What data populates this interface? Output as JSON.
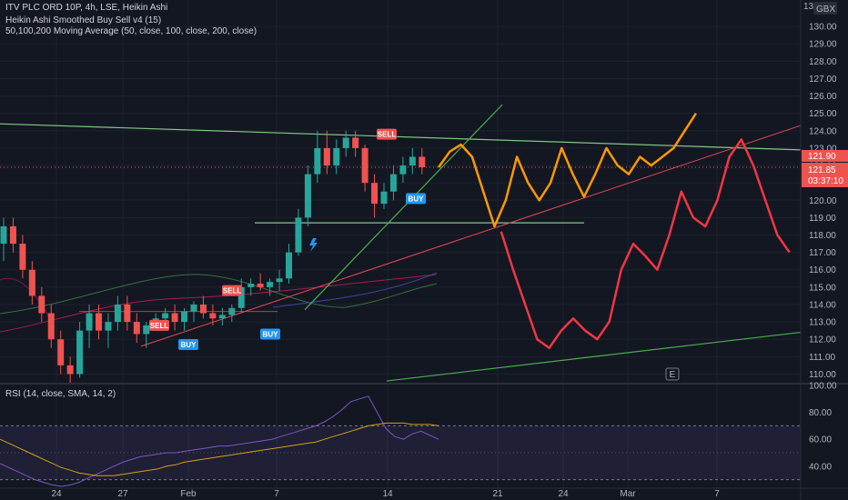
{
  "header": {
    "symbol_line": "ITV PLC ORD 10P, 4h, LSE, Heikin Ashi",
    "indicator1": "Heikin Ashi Smoothed Buy Sell v4  (15)",
    "indicator2": "50,100,200 Moving Average (50, close, 100, close, 200, close)",
    "currency": "GBX"
  },
  "rsi_legend": "RSI (14, close, SMA, 14, 2)",
  "price_tags": {
    "last": "121.90",
    "current": "121.85",
    "countdown": "03:37:10"
  },
  "extra_tick": "13",
  "e_badge": "E",
  "signals": [
    {
      "label": "SELL",
      "kind": "sell"
    },
    {
      "label": "SELL",
      "kind": "sell"
    },
    {
      "label": "SELL",
      "kind": "sell"
    },
    {
      "label": "BUY",
      "kind": "buy"
    },
    {
      "label": "BUY",
      "kind": "buy"
    },
    {
      "label": "BUY",
      "kind": "buy"
    }
  ],
  "colors": {
    "background": "#131722",
    "up_candle": "#26a69a",
    "down_candle": "#ef5350",
    "orange_projection": "#ff9800",
    "red_projection": "#f23645",
    "trend_green": "#4caf50",
    "resistance_green": "#81c784",
    "rsi_line": "#7e57c2",
    "rsi_ma": "#d4a017"
  },
  "chart_data": {
    "type": "candlestick",
    "price_axis": {
      "ylim": [
        109.5,
        131
      ],
      "ticks": [
        "110.00",
        "111.00",
        "112.00",
        "113.00",
        "114.00",
        "115.00",
        "116.00",
        "117.00",
        "118.00",
        "119.00",
        "120.00",
        "121.00",
        "122.00",
        "123.00",
        "124.00",
        "125.00",
        "126.00",
        "127.00",
        "128.00",
        "129.00",
        "130.00"
      ]
    },
    "rsi_axis": {
      "ylim": [
        25,
        100
      ],
      "ticks": [
        "100.00",
        "80.00",
        "60.00",
        "40.00"
      ],
      "band": [
        30,
        70
      ],
      "rsi": [
        42,
        39,
        36,
        33,
        30,
        28,
        26,
        25,
        26,
        28,
        31,
        34,
        37,
        40,
        43,
        45,
        47,
        48,
        49,
        50,
        50,
        51,
        52,
        53,
        54,
        55,
        55,
        56,
        57,
        58,
        59,
        60,
        62,
        64,
        66,
        68,
        70,
        73,
        77,
        82,
        88,
        90,
        92,
        80,
        68,
        62,
        60,
        64,
        66,
        63,
        60
      ],
      "rsi_ma": [
        60,
        57,
        54,
        51,
        48,
        45,
        42,
        39,
        37,
        35,
        34,
        33,
        33,
        33,
        34,
        35,
        36,
        37,
        38,
        40,
        41,
        43,
        44,
        45,
        46,
        47,
        48,
        49,
        50,
        51,
        52,
        53,
        54,
        55,
        56,
        57,
        58,
        60,
        62,
        64,
        66,
        68,
        70,
        71,
        72,
        72,
        72,
        71,
        71,
        71,
        70
      ]
    },
    "x_ticks": [
      "24",
      "27",
      "Feb",
      "7",
      "14",
      "21",
      "24",
      "Mar",
      "7"
    ],
    "candles": [
      {
        "o": 117.5,
        "h": 119.0,
        "l": 116.5,
        "c": 118.5
      },
      {
        "o": 118.5,
        "h": 119.0,
        "l": 117.0,
        "c": 117.5
      },
      {
        "o": 117.5,
        "h": 118.0,
        "l": 115.5,
        "c": 116.0
      },
      {
        "o": 116.0,
        "h": 116.5,
        "l": 114.0,
        "c": 114.5
      },
      {
        "o": 114.5,
        "h": 115.0,
        "l": 113.0,
        "c": 113.5
      },
      {
        "o": 113.5,
        "h": 114.0,
        "l": 111.5,
        "c": 112.0
      },
      {
        "o": 112.0,
        "h": 112.5,
        "l": 110.0,
        "c": 110.5
      },
      {
        "o": 110.5,
        "h": 111.0,
        "l": 109.5,
        "c": 110.0
      },
      {
        "o": 110.0,
        "h": 113.0,
        "l": 109.8,
        "c": 112.5
      },
      {
        "o": 112.5,
        "h": 114.0,
        "l": 111.5,
        "c": 113.5
      },
      {
        "o": 113.5,
        "h": 114.0,
        "l": 112.0,
        "c": 112.5
      },
      {
        "o": 112.5,
        "h": 113.5,
        "l": 111.5,
        "c": 113.0
      },
      {
        "o": 113.0,
        "h": 114.5,
        "l": 112.5,
        "c": 114.0
      },
      {
        "o": 114.0,
        "h": 114.5,
        "l": 112.5,
        "c": 113.0
      },
      {
        "o": 113.0,
        "h": 113.5,
        "l": 111.8,
        "c": 112.3
      },
      {
        "o": 112.3,
        "h": 113.0,
        "l": 111.5,
        "c": 112.8
      },
      {
        "o": 112.8,
        "h": 113.5,
        "l": 112.5,
        "c": 113.2
      },
      {
        "o": 113.2,
        "h": 113.8,
        "l": 112.8,
        "c": 113.5
      },
      {
        "o": 113.5,
        "h": 114.0,
        "l": 112.5,
        "c": 113.0
      },
      {
        "o": 113.0,
        "h": 113.8,
        "l": 112.5,
        "c": 113.6
      },
      {
        "o": 113.6,
        "h": 114.2,
        "l": 113.0,
        "c": 114.0
      },
      {
        "o": 114.0,
        "h": 114.5,
        "l": 113.2,
        "c": 113.5
      },
      {
        "o": 113.5,
        "h": 114.0,
        "l": 112.8,
        "c": 113.2
      },
      {
        "o": 113.2,
        "h": 113.8,
        "l": 112.8,
        "c": 113.4
      },
      {
        "o": 113.4,
        "h": 114.0,
        "l": 113.0,
        "c": 113.8
      },
      {
        "o": 113.8,
        "h": 115.5,
        "l": 113.5,
        "c": 115.0
      },
      {
        "o": 115.0,
        "h": 115.5,
        "l": 114.5,
        "c": 115.2
      },
      {
        "o": 115.2,
        "h": 115.8,
        "l": 114.8,
        "c": 115.0
      },
      {
        "o": 115.0,
        "h": 115.5,
        "l": 114.5,
        "c": 115.3
      },
      {
        "o": 115.3,
        "h": 116.0,
        "l": 114.8,
        "c": 115.5
      },
      {
        "o": 115.5,
        "h": 117.5,
        "l": 115.2,
        "c": 117.0
      },
      {
        "o": 117.0,
        "h": 119.5,
        "l": 116.8,
        "c": 119.0
      },
      {
        "o": 119.0,
        "h": 122.0,
        "l": 118.5,
        "c": 121.5
      },
      {
        "o": 121.5,
        "h": 124.0,
        "l": 121.0,
        "c": 123.0
      },
      {
        "o": 123.0,
        "h": 124.0,
        "l": 121.5,
        "c": 122.0
      },
      {
        "o": 122.0,
        "h": 123.5,
        "l": 121.5,
        "c": 123.0
      },
      {
        "o": 123.0,
        "h": 124.0,
        "l": 122.5,
        "c": 123.6
      },
      {
        "o": 123.6,
        "h": 124.0,
        "l": 122.5,
        "c": 123.0
      },
      {
        "o": 123.0,
        "h": 123.2,
        "l": 120.5,
        "c": 121.0
      },
      {
        "o": 121.0,
        "h": 121.5,
        "l": 119.0,
        "c": 119.8
      },
      {
        "o": 119.8,
        "h": 121.0,
        "l": 119.5,
        "c": 120.5
      },
      {
        "o": 120.5,
        "h": 122.0,
        "l": 120.0,
        "c": 121.5
      },
      {
        "o": 121.5,
        "h": 122.5,
        "l": 121.0,
        "c": 122.0
      },
      {
        "o": 122.0,
        "h": 123.0,
        "l": 121.5,
        "c": 122.5
      },
      {
        "o": 122.5,
        "h": 123.0,
        "l": 121.5,
        "c": 121.9
      }
    ],
    "projection_orange": [
      [
        0,
        121.9
      ],
      [
        1,
        122.8
      ],
      [
        2,
        123.2
      ],
      [
        3,
        122.5
      ],
      [
        4,
        120.5
      ],
      [
        5,
        118.5
      ],
      [
        6,
        120.0
      ],
      [
        7,
        122.5
      ],
      [
        8,
        121.0
      ],
      [
        9,
        120.0
      ],
      [
        10,
        121.0
      ],
      [
        11,
        123.0
      ],
      [
        12,
        121.5
      ],
      [
        13,
        120.2
      ],
      [
        14,
        121.5
      ],
      [
        15,
        123.0
      ],
      [
        16,
        122.0
      ],
      [
        17,
        121.5
      ],
      [
        18,
        122.5
      ],
      [
        19,
        122.0
      ],
      [
        20,
        122.5
      ],
      [
        21,
        123.0
      ],
      [
        22,
        124.0
      ],
      [
        23,
        125.0
      ]
    ],
    "projection_red": [
      [
        4,
        118.2
      ],
      [
        5,
        116.0
      ],
      [
        6,
        114.0
      ],
      [
        7,
        112.0
      ],
      [
        8,
        111.5
      ],
      [
        9,
        112.5
      ],
      [
        10,
        113.2
      ],
      [
        11,
        112.5
      ],
      [
        12,
        112.0
      ],
      [
        13,
        113.0
      ],
      [
        14,
        116.0
      ],
      [
        15,
        117.5
      ],
      [
        16,
        116.8
      ],
      [
        17,
        116.0
      ],
      [
        18,
        118.0
      ],
      [
        19,
        120.5
      ],
      [
        20,
        119.0
      ],
      [
        21,
        118.5
      ],
      [
        22,
        120.0
      ],
      [
        23,
        122.5
      ],
      [
        24,
        123.5
      ],
      [
        25,
        122.0
      ],
      [
        26,
        120.0
      ],
      [
        27,
        118.0
      ],
      [
        28,
        117.0
      ]
    ]
  }
}
